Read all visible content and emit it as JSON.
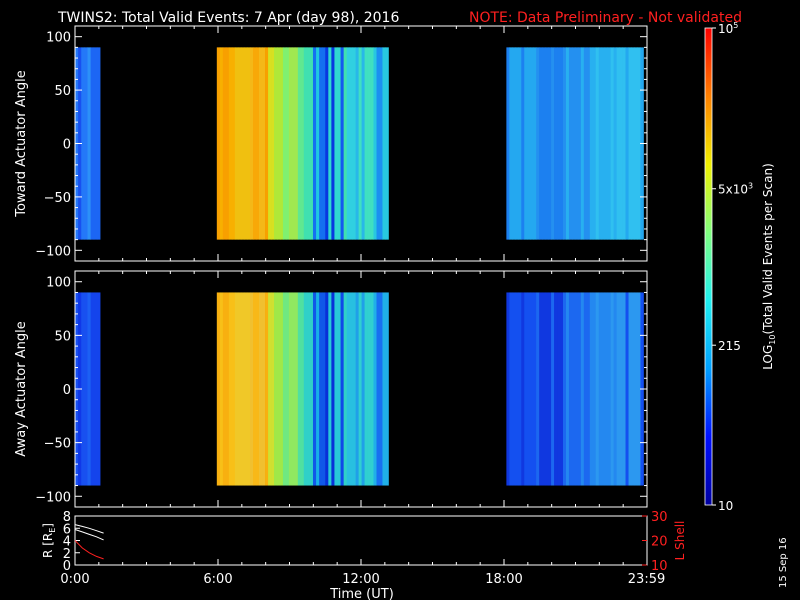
{
  "header": {
    "title": "TWINS2: Total Valid Events:  7 Apr (day  98), 2016",
    "note": "NOTE: Data Preliminary - Not validated",
    "note_color": "#ff2020"
  },
  "stamp": "15 Sep 16",
  "chart_data": [
    {
      "type": "heatmap",
      "name": "toward",
      "ylabel": "Toward Actuator Angle",
      "ylim": [
        -110,
        110
      ],
      "yticks": [
        100,
        50,
        0,
        -50,
        -100
      ],
      "xlim": [
        0,
        24
      ],
      "data_ylim": [
        -90,
        90
      ],
      "segments": [
        {
          "start": 0.0,
          "end": 1.05,
          "colors": [
            "#1850f0",
            "#2478f8",
            "#2c90f8",
            "#1c66f4"
          ]
        },
        {
          "start": 5.95,
          "end": 8.1,
          "colors": [
            "#f8a000",
            "#f8b000",
            "#f0c010",
            "#f8a808",
            "#f4b818"
          ]
        },
        {
          "start": 8.1,
          "end": 9.6,
          "colors": [
            "#d8e020",
            "#b0e838",
            "#80f070",
            "#a0e850",
            "#60e890"
          ]
        },
        {
          "start": 9.6,
          "end": 11.4,
          "colors": [
            "#40e0b0",
            "#20c8e0",
            "#1470f0",
            "#0838e0",
            "#30d8d0",
            "#1458f0"
          ]
        },
        {
          "start": 11.4,
          "end": 13.15,
          "colors": [
            "#30d0e0",
            "#28b8e8",
            "#40e0c0",
            "#1c90f0",
            "#28c8e0"
          ]
        },
        {
          "start": 18.1,
          "end": 23.85,
          "colors": [
            "#24a8f0",
            "#1c80f0",
            "#2490f0",
            "#28b0f0",
            "#30c0f0"
          ]
        }
      ]
    },
    {
      "type": "heatmap",
      "name": "away",
      "ylabel": "Away Actuator Angle",
      "ylim": [
        -110,
        110
      ],
      "yticks": [
        100,
        50,
        0,
        -50,
        -100
      ],
      "xlim": [
        0,
        24
      ],
      "data_ylim": [
        -90,
        90
      ],
      "segments": [
        {
          "start": 0.0,
          "end": 1.05,
          "colors": [
            "#1038e8",
            "#1850f0",
            "#1c60f4",
            "#1444ec"
          ]
        },
        {
          "start": 5.95,
          "end": 8.1,
          "colors": [
            "#f8b010",
            "#f8c018",
            "#f0c828",
            "#f8b818",
            "#f0c030"
          ]
        },
        {
          "start": 8.1,
          "end": 9.6,
          "colors": [
            "#d0e030",
            "#a0e848",
            "#70e880",
            "#90e860",
            "#50e0a0"
          ]
        },
        {
          "start": 9.6,
          "end": 11.4,
          "colors": [
            "#30d0c8",
            "#18b0e8",
            "#1058e8",
            "#0830d8",
            "#28c8d8",
            "#1048e8"
          ]
        },
        {
          "start": 11.4,
          "end": 13.15,
          "colors": [
            "#28c0e0",
            "#20a0e8",
            "#30d0d0",
            "#1870f0",
            "#20b0e8"
          ]
        },
        {
          "start": 18.1,
          "end": 23.85,
          "colors": [
            "#1450f0",
            "#1038e0",
            "#1c68f0",
            "#2488f0",
            "#2c98f0"
          ]
        }
      ]
    },
    {
      "type": "line",
      "name": "orbit",
      "ylabel_left": "R [R",
      "ylabel_left_sub": "E",
      "ylabel_left_end": "]",
      "ylabel_right": "L Shell",
      "ylim_left": [
        0,
        8
      ],
      "yticks_left": [
        8,
        6,
        4,
        2,
        0
      ],
      "ylim_right": [
        10,
        30
      ],
      "yticks_right": [
        30,
        20,
        10
      ],
      "right_color": "#ff2020",
      "xlim": [
        0,
        24
      ],
      "series": [
        {
          "axis": "left",
          "color": "#ffffff",
          "x": [
            0,
            0.3,
            0.6,
            0.9,
            1.2
          ],
          "y": [
            6.6,
            6.3,
            6.0,
            5.6,
            5.2
          ]
        },
        {
          "axis": "left",
          "color": "#ffffff",
          "x": [
            0,
            0.3,
            0.6,
            0.9,
            1.2
          ],
          "y": [
            5.8,
            5.4,
            5.0,
            4.6,
            4.1
          ]
        },
        {
          "axis": "right",
          "color": "#ff2020",
          "x": [
            0,
            0.3,
            0.6,
            0.9,
            1.2
          ],
          "y": [
            20,
            17,
            15,
            13.5,
            12.5
          ]
        }
      ]
    }
  ],
  "xaxis": {
    "label": "Time (UT)",
    "ticks": [
      {
        "v": 0,
        "label": "0:00"
      },
      {
        "v": 6,
        "label": "6:00"
      },
      {
        "v": 12,
        "label": "12:00"
      },
      {
        "v": 18,
        "label": "18:00"
      },
      {
        "v": 23.98,
        "label": "23:59"
      }
    ]
  },
  "colorbar": {
    "label_main": "LOG",
    "label_sub": "10",
    "label_rest": "(Total Valid Events per Scan)",
    "stops": [
      "#0000a0",
      "#0010ff",
      "#00a0ff",
      "#20f0f0",
      "#80ff80",
      "#f0f000",
      "#ff8000",
      "#ff0000"
    ],
    "ticks": [
      {
        "frac": 1.0,
        "base": "10",
        "exp": "5"
      },
      {
        "frac": 0.663,
        "base": "5x10",
        "exp": "3"
      },
      {
        "frac": 0.335,
        "base": "215",
        "exp": ""
      },
      {
        "frac": 0.0,
        "base": "10",
        "exp": ""
      }
    ]
  }
}
